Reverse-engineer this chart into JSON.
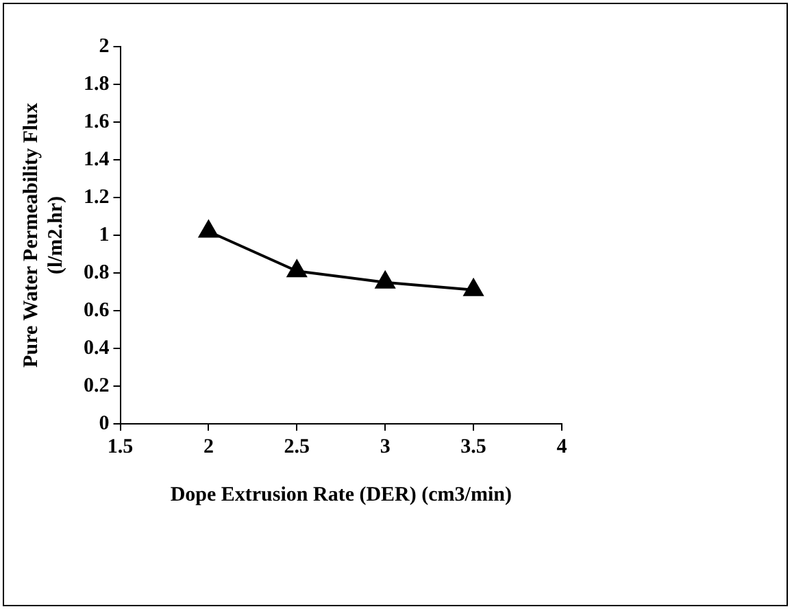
{
  "chart_data": {
    "type": "line",
    "xlabel": "Dope Extrusion Rate (DER) (cm3/min)",
    "ylabel": "Pure Water Permeability Flux\n(l/m2.hr)",
    "x": [
      2,
      2.5,
      3,
      3.5
    ],
    "series": [
      {
        "color": "#000000",
        "values": [
          1.02,
          0.81,
          0.75,
          0.71
        ]
      }
    ],
    "xlim": [
      1.5,
      4
    ],
    "xticks": [
      1.5,
      2,
      2.5,
      3,
      3.5,
      4
    ],
    "ylim": [
      0,
      2
    ],
    "yticks": [
      0,
      0.2,
      0.4,
      0.6,
      0.8,
      1,
      1.2,
      1.4,
      1.6,
      1.8,
      2
    ],
    "grid": false,
    "legend": false,
    "marker": "triangle",
    "line_style": "solid"
  }
}
